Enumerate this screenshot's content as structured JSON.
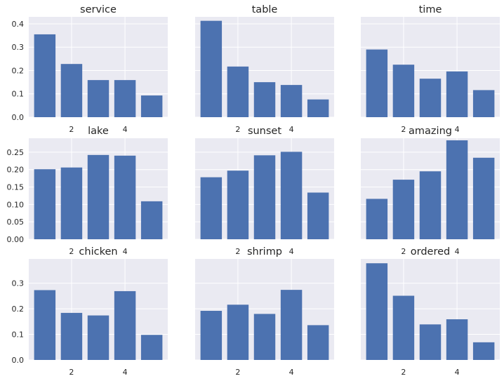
{
  "chart_data": [
    {
      "type": "bar",
      "title": "service",
      "x": [
        1,
        2,
        3,
        4,
        5
      ],
      "values": [
        0.355,
        0.228,
        0.159,
        0.159,
        0.093
      ],
      "ylim": [
        0,
        0.43
      ],
      "yticks": [
        "0.0",
        "0.1",
        "0.2",
        "0.3",
        "0.4"
      ],
      "xticks": [
        "2",
        "4"
      ],
      "color": "#4C72B0",
      "grid": true
    },
    {
      "type": "bar",
      "title": "table",
      "x": [
        1,
        2,
        3,
        4,
        5
      ],
      "values": [
        0.413,
        0.217,
        0.15,
        0.138,
        0.076
      ],
      "ylim": [
        0,
        0.43
      ],
      "yticks": [],
      "xticks": [
        "2",
        "4"
      ],
      "color": "#4C72B0",
      "grid": true
    },
    {
      "type": "bar",
      "title": "time",
      "x": [
        1,
        2,
        3,
        4,
        5
      ],
      "values": [
        0.29,
        0.225,
        0.165,
        0.196,
        0.116
      ],
      "ylim": [
        0,
        0.43
      ],
      "yticks": [],
      "xticks": [
        "2",
        "4"
      ],
      "color": "#4C72B0",
      "grid": true
    },
    {
      "type": "bar",
      "title": "lake",
      "x": [
        1,
        2,
        3,
        4,
        5
      ],
      "values": [
        0.201,
        0.206,
        0.242,
        0.24,
        0.109
      ],
      "ylim": [
        0,
        0.29
      ],
      "yticks": [
        "0.00",
        "0.05",
        "0.10",
        "0.15",
        "0.20",
        "0.25"
      ],
      "xticks": [
        "2",
        "4"
      ],
      "color": "#4C72B0",
      "grid": true
    },
    {
      "type": "bar",
      "title": "sunset",
      "x": [
        1,
        2,
        3,
        4,
        5
      ],
      "values": [
        0.178,
        0.197,
        0.241,
        0.251,
        0.134
      ],
      "ylim": [
        0,
        0.29
      ],
      "yticks": [],
      "xticks": [
        "2",
        "4"
      ],
      "color": "#4C72B0",
      "grid": true
    },
    {
      "type": "bar",
      "title": "amazing",
      "x": [
        1,
        2,
        3,
        4,
        5
      ],
      "values": [
        0.116,
        0.171,
        0.195,
        0.284,
        0.234
      ],
      "ylim": [
        0,
        0.29
      ],
      "yticks": [],
      "xticks": [
        "2",
        "4"
      ],
      "color": "#4C72B0",
      "grid": true
    },
    {
      "type": "bar",
      "title": "chicken",
      "x": [
        1,
        2,
        3,
        4,
        5
      ],
      "values": [
        0.273,
        0.184,
        0.174,
        0.269,
        0.098
      ],
      "ylim": [
        0,
        0.395
      ],
      "yticks": [
        "0.0",
        "0.1",
        "0.2",
        "0.3"
      ],
      "xticks": [
        "2",
        "4"
      ],
      "color": "#4C72B0",
      "grid": true
    },
    {
      "type": "bar",
      "title": "shrimp",
      "x": [
        1,
        2,
        3,
        4,
        5
      ],
      "values": [
        0.192,
        0.216,
        0.18,
        0.274,
        0.136
      ],
      "ylim": [
        0,
        0.395
      ],
      "yticks": [],
      "xticks": [
        "2",
        "4"
      ],
      "color": "#4C72B0",
      "grid": true
    },
    {
      "type": "bar",
      "title": "ordered",
      "x": [
        1,
        2,
        3,
        4,
        5
      ],
      "values": [
        0.378,
        0.251,
        0.139,
        0.159,
        0.069
      ],
      "ylim": [
        0,
        0.395
      ],
      "yticks": [],
      "xticks": [
        "2",
        "4"
      ],
      "color": "#4C72B0",
      "grid": true
    }
  ]
}
